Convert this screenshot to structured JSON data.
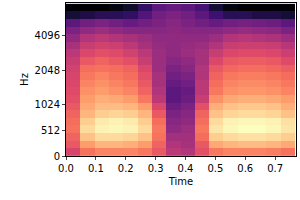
{
  "chart_data": {
    "type": "heatmap",
    "x_label": "Time",
    "y_label": "Hz",
    "x": [
      0.024,
      0.072,
      0.12,
      0.168,
      0.216,
      0.264,
      0.312,
      0.36,
      0.408,
      0.456,
      0.504,
      0.552,
      0.6,
      0.648,
      0.696,
      0.744
    ],
    "y": [
      75,
      225,
      375,
      525,
      675,
      825,
      975,
      1138,
      1328,
      1550,
      1809,
      2112,
      2465,
      2878,
      3359,
      3921,
      4577,
      5343,
      6237,
      7280
    ],
    "cells": [
      [
        -35,
        -25,
        -22,
        -22,
        -22,
        -24,
        -30,
        -40,
        -42,
        -32,
        -24,
        -22,
        -22,
        -22,
        -23,
        -25
      ],
      [
        -30,
        -18,
        -14,
        -14,
        -15,
        -18,
        -28,
        -42,
        -44,
        -30,
        -16,
        -14,
        -13,
        -13,
        -14,
        -16
      ],
      [
        -28,
        -12,
        -8,
        -8,
        -9,
        -12,
        -25,
        -45,
        -45,
        -26,
        -10,
        -8,
        -7,
        -7,
        -8,
        -10
      ],
      [
        -25,
        -8,
        -4,
        -3,
        -4,
        -8,
        -24,
        -48,
        -46,
        -24,
        -6,
        -3,
        -2,
        -2,
        -3,
        -6
      ],
      [
        -26,
        -10,
        -5,
        -4,
        -5,
        -10,
        -26,
        -50,
        -48,
        -26,
        -8,
        -4,
        -3,
        -3,
        -4,
        -7
      ],
      [
        -28,
        -14,
        -10,
        -9,
        -10,
        -14,
        -30,
        -52,
        -50,
        -28,
        -12,
        -9,
        -8,
        -8,
        -9,
        -12
      ],
      [
        -30,
        -16,
        -13,
        -13,
        -14,
        -18,
        -34,
        -55,
        -52,
        -32,
        -15,
        -12,
        -11,
        -11,
        -12,
        -15
      ],
      [
        -32,
        -18,
        -15,
        -16,
        -18,
        -24,
        -40,
        -58,
        -55,
        -38,
        -20,
        -16,
        -15,
        -15,
        -16,
        -18
      ],
      [
        -33,
        -20,
        -18,
        -20,
        -22,
        -28,
        -42,
        -58,
        -56,
        -40,
        -24,
        -20,
        -19,
        -19,
        -20,
        -22
      ],
      [
        -34,
        -22,
        -20,
        -22,
        -24,
        -30,
        -44,
        -56,
        -54,
        -40,
        -26,
        -22,
        -21,
        -21,
        -22,
        -24
      ],
      [
        -35,
        -24,
        -22,
        -24,
        -26,
        -32,
        -44,
        -54,
        -52,
        -42,
        -28,
        -24,
        -23,
        -23,
        -24,
        -26
      ],
      [
        -36,
        -26,
        -25,
        -26,
        -28,
        -34,
        -46,
        -52,
        -50,
        -42,
        -30,
        -27,
        -26,
        -26,
        -27,
        -29
      ],
      [
        -38,
        -30,
        -28,
        -30,
        -32,
        -38,
        -46,
        -50,
        -48,
        -44,
        -34,
        -30,
        -29,
        -29,
        -30,
        -33
      ],
      [
        -40,
        -34,
        -32,
        -33,
        -36,
        -40,
        -46,
        -48,
        -46,
        -44,
        -38,
        -34,
        -33,
        -33,
        -34,
        -37
      ],
      [
        -44,
        -38,
        -36,
        -37,
        -40,
        -44,
        -47,
        -48,
        -47,
        -46,
        -42,
        -38,
        -37,
        -37,
        -38,
        -41
      ],
      [
        -48,
        -42,
        -40,
        -42,
        -44,
        -46,
        -48,
        -48,
        -48,
        -48,
        -46,
        -42,
        -41,
        -42,
        -43,
        -46
      ],
      [
        -52,
        -48,
        -46,
        -48,
        -50,
        -50,
        -50,
        -49,
        -50,
        -50,
        -50,
        -48,
        -47,
        -48,
        -49,
        -52
      ],
      [
        -58,
        -54,
        -52,
        -54,
        -56,
        -54,
        -52,
        -50,
        -52,
        -54,
        -56,
        -54,
        -53,
        -54,
        -55,
        -58
      ],
      [
        -72,
        -70,
        -68,
        -68,
        -66,
        -60,
        -54,
        -52,
        -54,
        -58,
        -64,
        -68,
        -68,
        -70,
        -70,
        -72
      ],
      [
        -80,
        -80,
        -80,
        -78,
        -74,
        -66,
        -58,
        -56,
        -58,
        -62,
        -72,
        -78,
        -80,
        -80,
        -80,
        -80
      ]
    ],
    "xlim": [
      0,
      0.77
    ],
    "xticks": [
      {
        "value": 0,
        "label": "0.0"
      },
      0.1,
      0.2,
      0.3,
      0.4,
      0.5,
      0.6,
      0.7
    ],
    "ylim": [
      0,
      8000
    ],
    "yticks": [
      0,
      512,
      1024,
      2048,
      4096
    ]
  }
}
